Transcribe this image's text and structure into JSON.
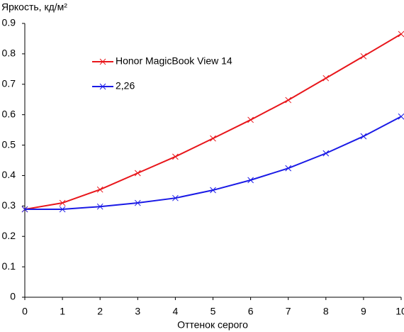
{
  "chart_data": {
    "type": "line",
    "y_label": "Яркость, кд/м²",
    "x_label": "Оттенок серого",
    "x": [
      0,
      1,
      2,
      3,
      4,
      5,
      6,
      7,
      8,
      9,
      10
    ],
    "series": [
      {
        "name": "Honor MagicBook View 14",
        "color": "#e8161b",
        "values": [
          0.289,
          0.31,
          0.354,
          0.408,
          0.462,
          0.522,
          0.583,
          0.648,
          0.72,
          0.792,
          0.865
        ]
      },
      {
        "name": "2,26",
        "color": "#1a1ae6",
        "values": [
          0.289,
          0.289,
          0.298,
          0.31,
          0.326,
          0.352,
          0.385,
          0.424,
          0.473,
          0.529,
          0.594
        ]
      }
    ],
    "xlim": [
      0,
      10
    ],
    "xticks": [
      0,
      1,
      2,
      3,
      4,
      5,
      6,
      7,
      8,
      9,
      10
    ],
    "ylim": [
      0,
      0.9
    ],
    "yticks": [
      0,
      0.1,
      0.2,
      0.3,
      0.4,
      0.5,
      0.6,
      0.7,
      0.8,
      0.9
    ],
    "grid": false,
    "marker": "x"
  }
}
